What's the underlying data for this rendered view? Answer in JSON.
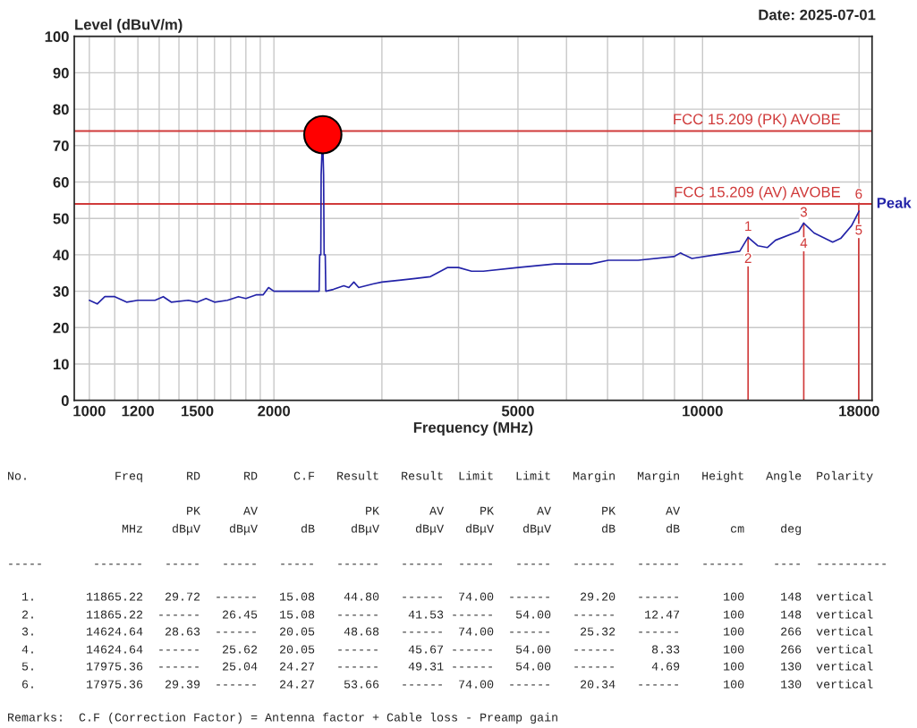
{
  "chart_data": {
    "type": "line",
    "xlabel": "Frequency (MHz)",
    "ylabel": "Level (dBuV/m)",
    "log": "x",
    "grid": true,
    "marker": "none",
    "line_style": "solid",
    "xlim": [
      945,
      18900
    ],
    "ylim": [
      0,
      100
    ],
    "xticks": [
      1000,
      {
        "value": 1100,
        "label": null
      },
      1200,
      {
        "value": 1300,
        "label": null
      },
      {
        "value": 1400,
        "label": null
      },
      1500,
      {
        "value": 1600,
        "label": null
      },
      {
        "value": 1700,
        "label": null
      },
      {
        "value": 1800,
        "label": null
      },
      {
        "value": 1900,
        "label": null
      },
      2000,
      {
        "value": 3000,
        "label": null
      },
      {
        "value": 4000,
        "label": null
      },
      5000,
      {
        "value": 6000,
        "label": null
      },
      {
        "value": 7000,
        "label": null
      },
      {
        "value": 8000,
        "label": null
      },
      {
        "value": 9000,
        "label": null
      },
      10000,
      18000
    ],
    "yticks": [
      0,
      10,
      20,
      30,
      40,
      50,
      60,
      70,
      80,
      90,
      100
    ],
    "series": [
      {
        "name": "Peak",
        "color": "#2323a8",
        "x": [
          1000,
          1030,
          1060,
          1100,
          1150,
          1200,
          1280,
          1320,
          1360,
          1450,
          1500,
          1550,
          1600,
          1680,
          1750,
          1800,
          1870,
          1920,
          1960,
          2000,
          2100,
          2200,
          2300,
          2370,
          2375,
          2385,
          2388,
          2395,
          2405,
          2410,
          2415,
          2425,
          2430,
          2500,
          2600,
          2650,
          2700,
          2750,
          2900,
          3000,
          3200,
          3400,
          3600,
          3835,
          4000,
          4200,
          4390,
          5000,
          5740,
          6570,
          7020,
          7850,
          8980,
          9200,
          9610,
          10500,
          11500,
          11865,
          12300,
          12750,
          13150,
          14350,
          14620,
          15200,
          16300,
          16800,
          17500,
          18000
        ],
        "values": [
          27.5,
          26.5,
          28.5,
          28.5,
          27,
          27.5,
          27.5,
          28.5,
          27,
          27.5,
          27,
          28,
          27,
          27.5,
          28.5,
          28,
          29,
          29,
          31,
          30,
          30,
          30,
          30,
          30,
          40,
          40,
          62,
          68,
          68,
          62,
          40,
          40,
          30,
          30.5,
          31.5,
          31,
          32.5,
          31,
          32,
          32.5,
          33,
          33.5,
          34,
          36.5,
          36.5,
          35.5,
          35.5,
          36.5,
          37.5,
          37.5,
          38.5,
          38.5,
          39.5,
          40.5,
          39,
          40,
          41,
          44.8,
          42.5,
          42,
          44,
          46.5,
          48.7,
          46,
          43.5,
          44.5,
          48,
          52
        ]
      },
      {
        "type": "scatter",
        "color": "#ff0000",
        "marker": "circle",
        "x": [
          2403
        ],
        "values": [
          73
        ]
      }
    ],
    "ref_lines": [
      {
        "axis": "y",
        "value": 74,
        "label": "FCC 15.209 (PK) AVOBE",
        "color": "#d03a3a"
      },
      {
        "axis": "y",
        "value": 54,
        "label": "FCC 15.209 (AV) AVOBE",
        "color": "#d03a3a"
      },
      {
        "axis": "x",
        "value": 11865.22,
        "color": "#d03a3a"
      },
      {
        "axis": "x",
        "value": 14624.64,
        "color": "#d03a3a"
      },
      {
        "axis": "x",
        "value": 17975.36,
        "color": "#d03a3a"
      }
    ],
    "annotations": [
      "Date: 2025-07-01",
      {
        "text": "1",
        "x": 11865.22,
        "y": 44.8
      },
      {
        "text": "2",
        "x": 11865.22,
        "y": 41.53
      },
      {
        "text": "3",
        "x": 14624.64,
        "y": 48.68
      },
      {
        "text": "4",
        "x": 14624.64,
        "y": 45.67
      },
      {
        "text": "5",
        "x": 17975.36,
        "y": 49.31
      },
      {
        "text": "6",
        "x": 17975.36,
        "y": 53.66
      },
      "No.            Freq      RD      RD     C.F   Result   Result  Limit   Limit   Margin   Margin   Height   Angle  Polarity",
      "                         PK      AV               PK       AV     PK      AV       PK       AV",
      "                MHz    dBμV    dBμV      dB     dBμV     dBμV   dBμV    dBμV       dB       dB       cm     deg",
      "-----       -------   -----   -----   -----   ------   ------  -----   -----   ------   ------   ------    ----  ----------",
      "  1.       11865.22   29.72  ------   15.08    44.80   ------  74.00  ------    29.20   ------      100     148  vertical",
      "  2.       11865.22  ------   26.45   15.08   ------    41.53 ------   54.00   ------    12.47      100     148  vertical",
      "  3.       14624.64   28.63  ------   20.05    48.68   ------  74.00  ------    25.32   ------      100     266  vertical",
      "  4.       14624.64  ------   25.62   20.05   ------    45.67 ------   54.00   ------     8.33      100     266  vertical",
      "  5.       17975.36  ------   25.04   24.27   ------    49.31 ------   54.00   ------     4.69      100     130  vertical",
      "  6.       17975.36   29.39  ------   24.27    53.66   ------  74.00  ------    20.34   ------      100     130  vertical",
      "Remarks:  C.F (Correction Factor) = Antenna factor + Cable loss - Preamp gain"
    ]
  }
}
